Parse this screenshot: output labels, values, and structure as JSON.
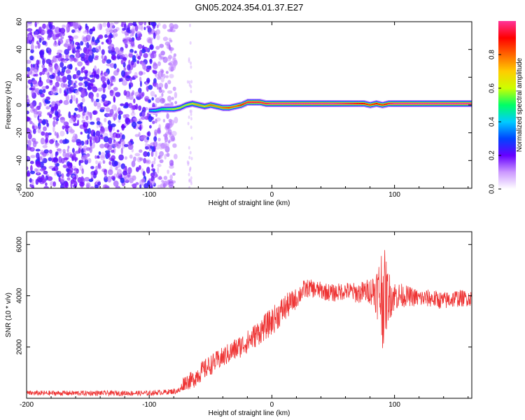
{
  "title": "GN05.2024.354.01.37.E27",
  "chart_data": [
    {
      "type": "heatmap",
      "xlabel": "Height of straight line (km)",
      "ylabel": "Frequency (Hz)",
      "xlim": [
        -200,
        163
      ],
      "ylim": [
        -60,
        60
      ],
      "xticks": [
        "-200",
        "-100",
        "0",
        "100"
      ],
      "yticks": [
        "-60",
        "-40",
        "-20",
        "0",
        "20",
        "40",
        "60"
      ],
      "ridge": {
        "description_values": "dominant frequency (Hz) vs height (km)",
        "x": [
          -100,
          -95,
          -90,
          -85,
          -80,
          -75,
          -70,
          -65,
          -60,
          -55,
          -50,
          -45,
          -40,
          -35,
          -30,
          -25,
          -20,
          -15,
          -10,
          -5,
          0,
          5,
          10,
          20,
          30,
          50,
          75,
          80,
          85,
          90,
          95,
          100,
          130,
          163
        ],
        "y": [
          -4,
          -4,
          -3,
          -3,
          -3,
          -2,
          0,
          1,
          0,
          -1,
          0,
          -1,
          -2,
          -2,
          -1,
          0,
          2,
          2,
          2,
          1,
          1,
          1,
          1,
          1,
          1,
          1,
          1,
          0,
          1,
          0,
          1,
          1,
          1,
          1
        ],
        "amplitude": [
          0.35,
          0.45,
          0.5,
          0.55,
          0.6,
          0.65,
          0.6,
          0.7,
          0.75,
          0.7,
          0.8,
          0.75,
          0.8,
          0.85,
          0.8,
          0.9,
          0.95,
          0.95,
          0.95,
          0.95,
          1.0,
          1.0,
          1.0,
          1.0,
          1.0,
          1.0,
          0.9,
          0.85,
          0.9,
          0.85,
          0.95,
          1.0,
          1.0,
          1.0
        ]
      },
      "noise_region": {
        "x_start": -200,
        "x_end": -78,
        "amplitude_max": 0.22
      },
      "colorbar": {
        "label": "Normalized spectral amplitude",
        "range": [
          0,
          1
        ],
        "ticks": [
          "0.0",
          "0.2",
          "0.4",
          "0.6",
          "0.8"
        ],
        "colors": [
          "#ffffff",
          "#cc99ff",
          "#6600ff",
          "#0044ff",
          "#00ccff",
          "#00ff66",
          "#ccff00",
          "#ffcc00",
          "#ff6600",
          "#ff0000",
          "#ff3399"
        ]
      }
    },
    {
      "type": "line",
      "xlabel": "Height of straight line (km)",
      "ylabel": "SNR (10 * v/v)",
      "xlim": [
        -200,
        163
      ],
      "ylim": [
        0,
        6500
      ],
      "xticks": [
        "-200",
        "-100",
        "0",
        "100"
      ],
      "yticks": [
        "2000",
        "4000",
        "6000"
      ],
      "series": [
        {
          "color": "#ee3333",
          "x": [
            -200,
            -150,
            -100,
            -85,
            -75,
            -72,
            -70,
            -65,
            -60,
            -50,
            -40,
            -30,
            -20,
            -10,
            0,
            10,
            20,
            25,
            30,
            40,
            50,
            60,
            70,
            80,
            85,
            88,
            90,
            92,
            95,
            100,
            110,
            120,
            130,
            140,
            150,
            163
          ],
          "y": [
            200,
            200,
            200,
            250,
            300,
            600,
            650,
            700,
            950,
            1300,
            1600,
            1900,
            2200,
            2600,
            3000,
            3500,
            3900,
            4200,
            4300,
            4200,
            4100,
            4200,
            4100,
            4200,
            4200,
            4100,
            4100,
            4000,
            4000,
            4000,
            4000,
            3900,
            3900,
            3800,
            3900,
            3900
          ],
          "noise": [
            100,
            100,
            100,
            100,
            120,
            300,
            300,
            350,
            400,
            400,
            400,
            450,
            450,
            500,
            550,
            550,
            400,
            400,
            350,
            350,
            350,
            350,
            400,
            500,
            900,
            1500,
            2200,
            1800,
            1000,
            600,
            400,
            350,
            350,
            350,
            350,
            300
          ]
        }
      ]
    }
  ]
}
